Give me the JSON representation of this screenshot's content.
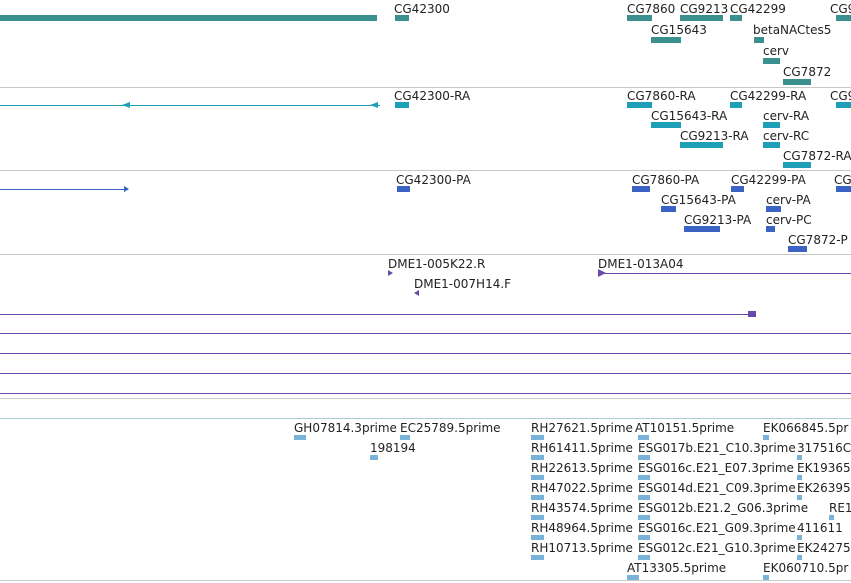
{
  "colors": {
    "gene": "#3a8f8f",
    "transcript": "#1e9fb8",
    "protein": "#3a63c4",
    "clone": "#6a4aa8",
    "est": "#7ab3d9",
    "divider": "#c8c8c8"
  },
  "tracks": {
    "genes": [
      "CG42300",
      "CG7860",
      "CG9213",
      "CG42299",
      "CG15643",
      "betaNACtes5",
      "cerv",
      "CG7872"
    ],
    "genes_cut_label": "CG9",
    "transcripts": [
      "CG42300-RA",
      "CG7860-RA",
      "CG42299-RA",
      "CG15643-RA",
      "cerv-RA",
      "CG9213-RA",
      "cerv-RC",
      "CG7872-RA"
    ],
    "transcripts_cut_label": "CG9",
    "proteins": [
      "CG42300-PA",
      "CG7860-PA",
      "CG42299-PA",
      "CG15643-PA",
      "cerv-PA",
      "CG9213-PA",
      "cerv-PC",
      "CG7872-P"
    ],
    "proteins_cut_label": "CG",
    "clones": [
      "DME1-005K22.R",
      "DME1-013A04",
      "DME1-007H14.F"
    ],
    "ests": [
      "GH07814.3prime",
      "EC25789.5prime",
      "198194",
      "RH27621.5prime",
      "AT10151.5prime",
      "EK066845.5pr",
      "RH61411.5prime",
      "ESG017b.E21_C10.3prime",
      "317516C",
      "RH22613.5prime",
      "ESG016c.E21_E07.3prime",
      "EK19365",
      "RH47022.5prime",
      "ESG014d.E21_C09.3prime",
      "EK26395",
      "RH43574.5prime",
      "ESG012b.E21.2_G06.3prime",
      "RE1",
      "RH48964.5prime",
      "ESG016c.E21_G09.3prime",
      "411611",
      "RH10713.5prime",
      "ESG012c.E21_G10.3prime",
      "EK24275",
      "AT13305.5prime",
      "EK060710.5pr"
    ]
  }
}
